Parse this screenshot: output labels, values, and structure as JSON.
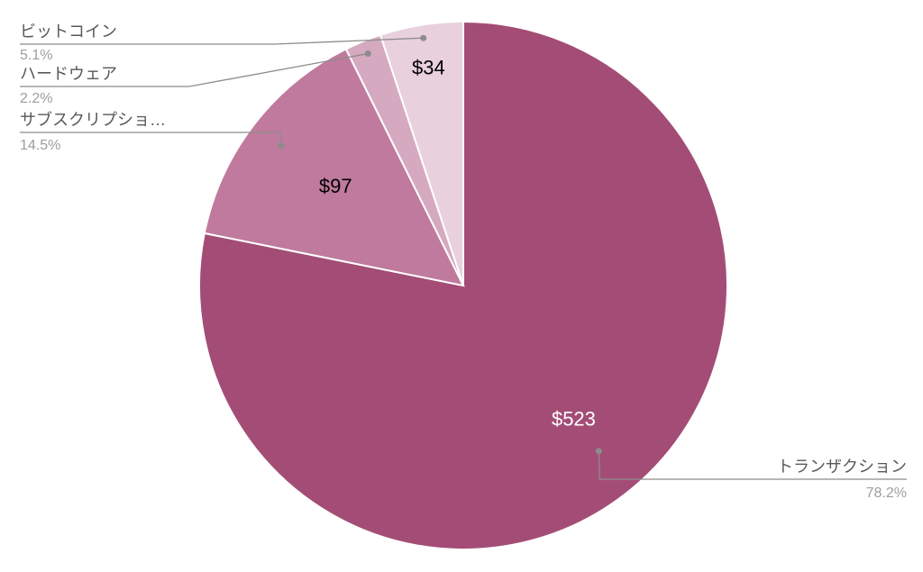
{
  "chart_data": {
    "type": "pie",
    "title": "",
    "series": [
      {
        "slices": [
          {
            "label": "トランザクション",
            "value": 523,
            "value_label": "$523",
            "percent": "78.2%",
            "color": "#a34d76",
            "value_label_color": "#ffffff"
          },
          {
            "label": "サブスクリプショ…",
            "value": 97,
            "value_label": "$97",
            "percent": "14.5%",
            "color": "#c07a9e",
            "value_label_color": "#000000"
          },
          {
            "label": "ハードウェア",
            "value": 15,
            "value_label": "",
            "percent": "2.2%",
            "color": "#d5a9bf",
            "value_label_color": "#000000"
          },
          {
            "label": "ビットコイン",
            "value": 34,
            "value_label": "$34",
            "percent": "5.1%",
            "color": "#e8d0dc",
            "value_label_color": "#000000"
          }
        ]
      }
    ],
    "legend": "callouts",
    "colors": {
      "leader_line": "#8c8c8c",
      "slice_border": "#ffffff"
    }
  }
}
